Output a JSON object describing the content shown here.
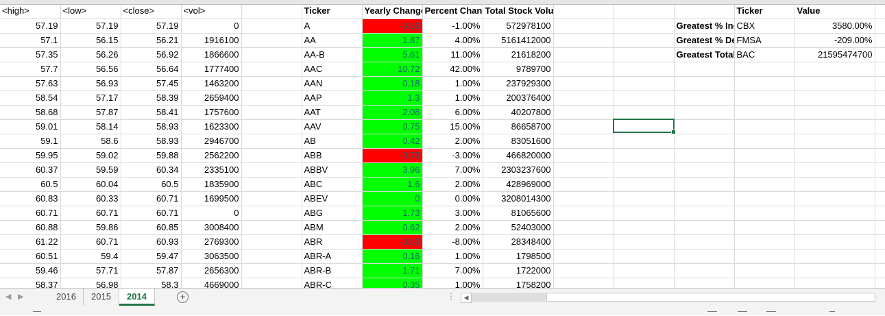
{
  "columns": [
    {
      "key": "high",
      "width": 88
    },
    {
      "key": "low",
      "width": 88
    },
    {
      "key": "close",
      "width": 88
    },
    {
      "key": "vol",
      "width": 88
    },
    {
      "key": "blank1",
      "width": 88
    },
    {
      "key": "ticker",
      "width": 88
    },
    {
      "key": "yearly",
      "width": 88
    },
    {
      "key": "pct",
      "width": 88
    },
    {
      "key": "volume",
      "width": 103
    },
    {
      "key": "blank2",
      "width": 88
    },
    {
      "key": "blank3",
      "width": 88
    },
    {
      "key": "summary_label",
      "width": 88
    },
    {
      "key": "summary_ticker",
      "width": 88
    },
    {
      "key": "summary_value",
      "width": 117
    },
    {
      "key": "blank4",
      "width": 16
    }
  ],
  "header_row": {
    "high": "<high>",
    "low": "<low>",
    "close": "<close>",
    "vol": "<vol>",
    "ticker": "Ticker",
    "yearly": "Yearly Change",
    "pct": "Percent Change",
    "volume": "Total Stock Volume",
    "summary_ticker": "Ticker",
    "summary_value": "Value"
  },
  "rows": [
    {
      "high": "57.19",
      "low": "57.19",
      "close": "57.19",
      "vol": "0",
      "ticker": "A",
      "yearly": "-0.36",
      "pct": "-1.00%",
      "volume": "572978100"
    },
    {
      "high": "57.1",
      "low": "56.15",
      "close": "56.21",
      "vol": "1916100",
      "ticker": "AA",
      "yearly": "1.87",
      "pct": "4.00%",
      "volume": "5161412000"
    },
    {
      "high": "57.35",
      "low": "56.26",
      "close": "56.92",
      "vol": "1866600",
      "ticker": "AA-B",
      "yearly": "5.61",
      "pct": "11.00%",
      "volume": "21618200"
    },
    {
      "high": "57.7",
      "low": "56.56",
      "close": "56.64",
      "vol": "1777400",
      "ticker": "AAC",
      "yearly": "10.72",
      "pct": "42.00%",
      "volume": "9789700"
    },
    {
      "high": "57.63",
      "low": "56.93",
      "close": "57.45",
      "vol": "1463200",
      "ticker": "AAN",
      "yearly": "0.18",
      "pct": "1.00%",
      "volume": "237929300"
    },
    {
      "high": "58.54",
      "low": "57.17",
      "close": "58.39",
      "vol": "2659400",
      "ticker": "AAP",
      "yearly": "1.3",
      "pct": "1.00%",
      "volume": "200376400"
    },
    {
      "high": "58.68",
      "low": "57.87",
      "close": "58.41",
      "vol": "1757600",
      "ticker": "AAT",
      "yearly": "2.08",
      "pct": "6.00%",
      "volume": "40207800"
    },
    {
      "high": "59.01",
      "low": "58.14",
      "close": "58.93",
      "vol": "1623300",
      "ticker": "AAV",
      "yearly": "0.75",
      "pct": "15.00%",
      "volume": "86658700"
    },
    {
      "high": "59.1",
      "low": "58.6",
      "close": "58.93",
      "vol": "2946700",
      "ticker": "AB",
      "yearly": "0.42",
      "pct": "2.00%",
      "volume": "83051600"
    },
    {
      "high": "59.95",
      "low": "59.02",
      "close": "59.88",
      "vol": "2562200",
      "ticker": "ABB",
      "yearly": "-0.73",
      "pct": "-3.00%",
      "volume": "466820000"
    },
    {
      "high": "60.37",
      "low": "59.59",
      "close": "60.34",
      "vol": "2335100",
      "ticker": "ABBV",
      "yearly": "3.96",
      "pct": "7.00%",
      "volume": "2303237600"
    },
    {
      "high": "60.5",
      "low": "60.04",
      "close": "60.5",
      "vol": "1835900",
      "ticker": "ABC",
      "yearly": "1.6",
      "pct": "2.00%",
      "volume": "428969000"
    },
    {
      "high": "60.83",
      "low": "60.33",
      "close": "60.71",
      "vol": "1699500",
      "ticker": "ABEV",
      "yearly": "0",
      "pct": "0.00%",
      "volume": "3208014300"
    },
    {
      "high": "60.71",
      "low": "60.71",
      "close": "60.71",
      "vol": "0",
      "ticker": "ABG",
      "yearly": "1.73",
      "pct": "3.00%",
      "volume": "81065600"
    },
    {
      "high": "60.88",
      "low": "59.86",
      "close": "60.85",
      "vol": "3008400",
      "ticker": "ABM",
      "yearly": "0.62",
      "pct": "2.00%",
      "volume": "52403000"
    },
    {
      "high": "61.22",
      "low": "60.71",
      "close": "60.93",
      "vol": "2769300",
      "ticker": "ABR",
      "yearly": "-0.53",
      "pct": "-8.00%",
      "volume": "28348400"
    },
    {
      "high": "60.51",
      "low": "59.4",
      "close": "59.47",
      "vol": "3063500",
      "ticker": "ABR-A",
      "yearly": "0.16",
      "pct": "1.00%",
      "volume": "1798500"
    },
    {
      "high": "59.46",
      "low": "57.71",
      "close": "57.87",
      "vol": "2656300",
      "ticker": "ABR-B",
      "yearly": "1.71",
      "pct": "7.00%",
      "volume": "1722000"
    },
    {
      "high": "58.37",
      "low": "56.98",
      "close": "58.3",
      "vol": "4669000",
      "ticker": "ABR-C",
      "yearly": "0.35",
      "pct": "1.00%",
      "volume": "1758200"
    }
  ],
  "summary": [
    {
      "label": "Greatest % Increase",
      "ticker": "CBX",
      "value": "3580.00%"
    },
    {
      "label": "Greatest % Decrease",
      "ticker": "FMSA",
      "value": "-209.00%"
    },
    {
      "label": "Greatest Total Volume",
      "ticker": "BAC",
      "value": "21595474700"
    }
  ],
  "colors": {
    "positive": "#00ff00",
    "negative": "#ff0000",
    "accent": "#217346"
  },
  "sheet_tabs": [
    {
      "label": "2016",
      "active": false
    },
    {
      "label": "2015",
      "active": false
    },
    {
      "label": "2014",
      "active": true
    }
  ],
  "icons": {
    "prev": "chevron-left-icon",
    "next": "chevron-right-icon",
    "add_sheet": "plus-circle-icon"
  }
}
